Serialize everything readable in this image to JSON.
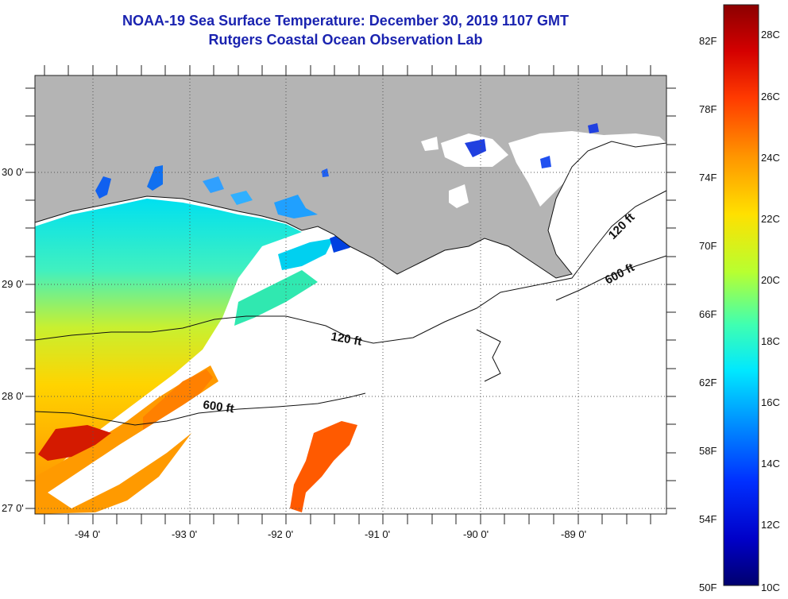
{
  "title": "NOAA-19 Sea Surface Temperature:  December 30, 2019 1107 GMT",
  "subtitle": "Rutgers Coastal Ocean Observation Lab",
  "map": {
    "lat_labels": [
      "30 0'",
      "29 0'",
      "28 0'",
      "27 0'"
    ],
    "lon_labels": [
      "-94 0'",
      "-93 0'",
      "-92 0'",
      "-91 0'",
      "-90 0'",
      "-89 0'"
    ],
    "contours": [
      {
        "label": "120 ft",
        "depth_ft": 120
      },
      {
        "label": "600 ft",
        "depth_ft": 600
      },
      {
        "label": "120 ft",
        "depth_ft": 120
      },
      {
        "label": "600 ft",
        "depth_ft": 600
      }
    ],
    "colors": {
      "land": "#b4b4b4",
      "cloud": "#ffffff"
    }
  },
  "colorbar": {
    "fahrenheit_labels": [
      "82F",
      "78F",
      "74F",
      "70F",
      "66F",
      "62F",
      "58F",
      "54F",
      "50F"
    ],
    "celsius_labels": [
      "28C",
      "26C",
      "24C",
      "22C",
      "20C",
      "18C",
      "16C",
      "14C",
      "12C",
      "10C"
    ]
  }
}
